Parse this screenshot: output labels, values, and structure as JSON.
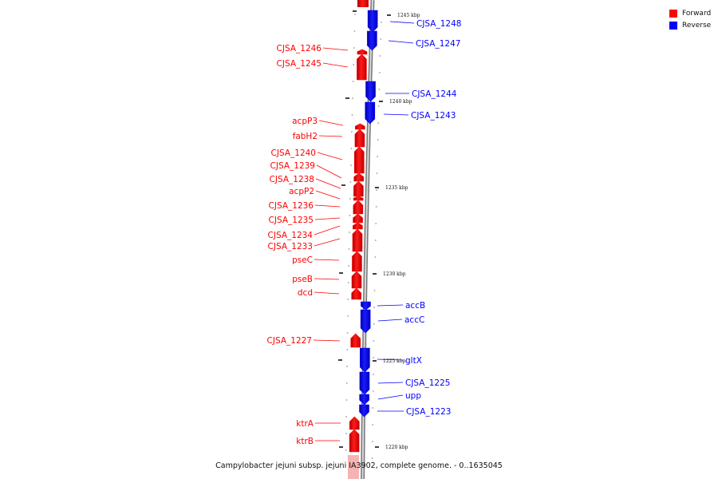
{
  "legend": {
    "forward": {
      "label": "Forward",
      "color": "#ff0000"
    },
    "reverse": {
      "label": "Reverse",
      "color": "#0000ff"
    }
  },
  "caption": "Campylobacter jejuni subsp. jejuni IA3902, complete genome. - 0..1635045",
  "ticks": [
    {
      "label": "1245 kbp",
      "pos": 1245
    },
    {
      "label": "1240 kbp",
      "pos": 1240
    },
    {
      "label": "1235 kbp",
      "pos": 1235
    },
    {
      "label": "1230 kbp",
      "pos": 1230
    },
    {
      "label": "1225 kbp",
      "pos": 1225
    },
    {
      "label": "1220 kbp",
      "pos": 1220
    }
  ],
  "genes": [
    {
      "name": "CJSA_1248",
      "strand": "reverse"
    },
    {
      "name": "CJSA_1247",
      "strand": "reverse"
    },
    {
      "name": "CJSA_1246",
      "strand": "forward"
    },
    {
      "name": "CJSA_1245",
      "strand": "forward"
    },
    {
      "name": "CJSA_1244",
      "strand": "reverse"
    },
    {
      "name": "CJSA_1243",
      "strand": "reverse"
    },
    {
      "name": "acpP3",
      "strand": "forward"
    },
    {
      "name": "fabH2",
      "strand": "forward"
    },
    {
      "name": "CJSA_1240",
      "strand": "forward"
    },
    {
      "name": "CJSA_1239",
      "strand": "forward"
    },
    {
      "name": "CJSA_1238",
      "strand": "forward"
    },
    {
      "name": "acpP2",
      "strand": "forward"
    },
    {
      "name": "CJSA_1236",
      "strand": "forward"
    },
    {
      "name": "CJSA_1235",
      "strand": "forward"
    },
    {
      "name": "CJSA_1234",
      "strand": "forward"
    },
    {
      "name": "CJSA_1233",
      "strand": "forward"
    },
    {
      "name": "pseC",
      "strand": "forward"
    },
    {
      "name": "pseB",
      "strand": "forward"
    },
    {
      "name": "dcd",
      "strand": "forward"
    },
    {
      "name": "accB",
      "strand": "reverse"
    },
    {
      "name": "accC",
      "strand": "reverse"
    },
    {
      "name": "CJSA_1227",
      "strand": "forward"
    },
    {
      "name": "gltX",
      "strand": "reverse"
    },
    {
      "name": "CJSA_1225",
      "strand": "reverse"
    },
    {
      "name": "upp",
      "strand": "reverse"
    },
    {
      "name": "CJSA_1223",
      "strand": "reverse"
    },
    {
      "name": "ktrA",
      "strand": "forward"
    },
    {
      "name": "ktrB",
      "strand": "forward"
    }
  ]
}
